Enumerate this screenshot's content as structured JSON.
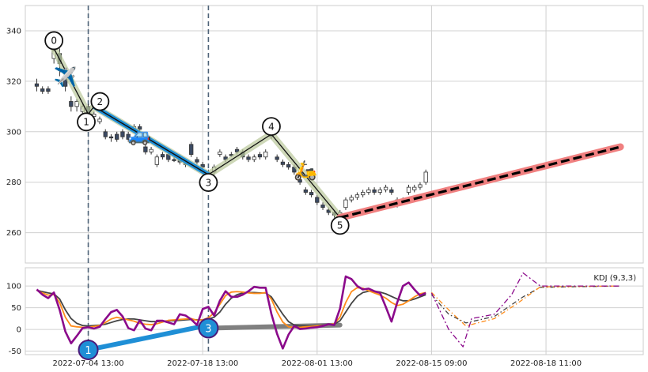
{
  "chart_data": [
    {
      "type": "candlestick",
      "ylim": [
        248,
        350
      ],
      "yticks": [
        260,
        280,
        300,
        320,
        340
      ],
      "candles": [
        [
          0,
          319,
          318,
          321,
          316,
          "down"
        ],
        [
          1,
          317,
          316,
          318,
          315,
          "down"
        ],
        [
          2,
          317,
          316,
          318,
          315,
          "down"
        ],
        [
          3,
          329,
          332,
          334,
          327,
          "up"
        ],
        [
          4,
          331,
          327,
          333,
          322,
          "down"
        ],
        [
          5,
          322,
          318,
          324,
          316,
          "down"
        ],
        [
          6,
          312,
          310,
          314,
          308,
          "down"
        ],
        [
          7,
          310,
          312,
          313,
          308,
          "up"
        ],
        [
          8,
          308,
          310,
          311,
          306,
          "up"
        ],
        [
          9,
          310,
          306,
          311,
          303,
          "down"
        ],
        [
          10,
          306,
          307,
          308,
          304,
          "up"
        ],
        [
          11,
          304,
          305,
          306,
          303,
          "up"
        ],
        [
          12,
          300,
          298,
          301,
          297,
          "down"
        ],
        [
          13,
          298,
          298,
          299,
          296,
          "down"
        ],
        [
          14,
          299,
          297,
          300,
          296,
          "down"
        ],
        [
          15,
          300,
          298,
          301,
          297,
          "down"
        ],
        [
          16,
          299,
          297,
          300,
          296,
          "down"
        ],
        [
          17,
          301,
          302,
          303,
          300,
          "up"
        ],
        [
          18,
          302,
          301,
          303,
          300,
          "down"
        ],
        [
          19,
          294,
          292,
          295,
          291,
          "down"
        ],
        [
          20,
          292,
          293,
          294,
          291,
          "up"
        ],
        [
          21,
          287,
          290,
          291,
          286,
          "up"
        ],
        [
          22,
          291,
          290,
          292,
          289,
          "down"
        ],
        [
          23,
          291,
          289,
          292,
          288,
          "down"
        ],
        [
          24,
          289,
          289,
          290,
          288,
          "down"
        ],
        [
          25,
          290,
          288,
          291,
          287,
          "down"
        ],
        [
          26,
          288,
          287,
          289,
          286,
          "down"
        ],
        [
          27,
          295,
          291,
          296,
          290,
          "down"
        ],
        [
          28,
          289,
          288,
          290,
          287,
          "down"
        ],
        [
          29,
          287,
          286,
          288,
          285,
          "down"
        ],
        [
          30,
          284,
          283,
          285,
          282,
          "down"
        ],
        [
          31,
          284,
          286,
          287,
          283,
          "up"
        ],
        [
          32,
          291,
          292,
          293,
          290,
          "up"
        ],
        [
          33,
          290,
          289,
          291,
          288,
          "down"
        ],
        [
          34,
          291,
          291,
          292,
          290,
          "down"
        ],
        [
          35,
          293,
          292,
          294,
          291,
          "down"
        ],
        [
          36,
          292,
          290,
          293,
          289,
          "down"
        ],
        [
          37,
          290,
          289,
          291,
          288,
          "down"
        ],
        [
          38,
          289,
          290,
          291,
          288,
          "up"
        ],
        [
          39,
          291,
          290,
          292,
          289,
          "down"
        ],
        [
          40,
          290,
          292,
          293,
          289,
          "up"
        ],
        [
          41,
          299,
          298,
          300,
          297,
          "down"
        ],
        [
          42,
          290,
          289,
          291,
          288,
          "down"
        ],
        [
          43,
          288,
          287,
          289,
          286,
          "down"
        ],
        [
          44,
          287,
          286,
          288,
          285,
          "down"
        ],
        [
          45,
          286,
          284,
          287,
          283,
          "down"
        ],
        [
          46,
          281,
          280,
          282,
          279,
          "down"
        ],
        [
          47,
          277,
          276,
          278,
          275,
          "down"
        ],
        [
          48,
          276,
          275,
          277,
          274,
          "down"
        ],
        [
          49,
          274,
          272,
          275,
          271,
          "down"
        ],
        [
          50,
          271,
          270,
          272,
          269,
          "down"
        ],
        [
          51,
          269,
          268,
          270,
          267,
          "down"
        ],
        [
          52,
          268,
          267,
          269,
          266,
          "down"
        ],
        [
          53,
          267,
          268,
          269,
          266,
          "up"
        ],
        [
          54,
          270,
          273,
          274,
          269,
          "up"
        ],
        [
          55,
          273,
          274,
          275,
          272,
          "up"
        ],
        [
          56,
          274,
          275,
          276,
          273,
          "up"
        ],
        [
          57,
          275,
          276,
          277,
          274,
          "up"
        ],
        [
          58,
          276,
          277,
          278,
          275,
          "up"
        ],
        [
          59,
          277,
          276,
          278,
          275,
          "down"
        ],
        [
          60,
          276,
          277,
          278,
          275,
          "up"
        ],
        [
          61,
          277,
          278,
          279,
          276,
          "up"
        ],
        [
          62,
          277,
          276,
          278,
          275,
          "down"
        ],
        [
          63,
          273,
          271,
          274,
          270,
          "down"
        ],
        [
          64,
          272,
          273,
          274,
          271,
          "up"
        ],
        [
          65,
          276,
          278,
          279,
          275,
          "up"
        ],
        [
          66,
          277,
          278,
          279,
          276,
          "up"
        ],
        [
          67,
          278,
          279,
          280,
          277,
          "up"
        ],
        [
          68,
          280,
          284,
          285,
          279,
          "up"
        ]
      ],
      "zigzag": [
        {
          "label": "0",
          "x": 3,
          "y": 333
        },
        {
          "label": "1",
          "x": 9,
          "y": 307
        },
        {
          "label": "2",
          "x": 10,
          "y": 310
        },
        {
          "label": "3",
          "x": 30,
          "y": 283
        },
        {
          "label": "4",
          "x": 41,
          "y": 299
        },
        {
          "label": "5",
          "x": 53,
          "y": 266
        }
      ],
      "projection": {
        "x0": 53,
        "y0": 266,
        "x1": 102,
        "y1": 294
      },
      "price_guides": [
        9,
        30
      ],
      "icons": [
        {
          "emoji": "✈️",
          "x": 5,
          "y": 322
        },
        {
          "emoji": "🚙",
          "x": 18,
          "y": 299
        },
        {
          "emoji": "🛵",
          "x": 47,
          "y": 285
        }
      ]
    },
    {
      "type": "line",
      "legend": "KDJ (9,3,3)",
      "ylim": [
        -58,
        142
      ],
      "yticks": [
        -50,
        0,
        50,
        100
      ],
      "xtick_labels": [
        {
          "x": 9,
          "label": "2022-07-04 13:00"
        },
        {
          "x": 29,
          "label": "2022-07-18 13:00"
        },
        {
          "x": 49,
          "label": "2022-08-01 13:00"
        },
        {
          "x": 69,
          "label": "2022-08-15 09:00"
        },
        {
          "x": 89,
          "label": "2022-08-18 11:00"
        }
      ],
      "kdj_guides": [
        9,
        30
      ],
      "series": [
        {
          "key": "D",
          "color": "#444444",
          "values": [
            90,
            87,
            84,
            82,
            70,
            45,
            25,
            14,
            9,
            8,
            9,
            10,
            12,
            16,
            20,
            23,
            24,
            24,
            22,
            20,
            18,
            18,
            19,
            20,
            20,
            21,
            22,
            23,
            22,
            22,
            24,
            28,
            40,
            58,
            72,
            80,
            84,
            85,
            85,
            84,
            84,
            75,
            55,
            35,
            18,
            10,
            8,
            8,
            8,
            9,
            10,
            11,
            12,
            20,
            40,
            60,
            76,
            85,
            88,
            88,
            86,
            82,
            76,
            70,
            66,
            66,
            70,
            75,
            80
          ]
        },
        {
          "key": "K",
          "color": "#ff8c1a",
          "values": [
            90,
            84,
            79,
            80,
            62,
            28,
            8,
            6,
            5,
            5,
            7,
            9,
            16,
            24,
            28,
            25,
            22,
            19,
            14,
            12,
            11,
            13,
            17,
            21,
            22,
            23,
            24,
            25,
            21,
            22,
            27,
            38,
            58,
            78,
            86,
            87,
            86,
            84,
            83,
            83,
            85,
            70,
            40,
            17,
            6,
            5,
            5,
            6,
            7,
            8,
            9,
            11,
            13,
            28,
            62,
            87,
            96,
            95,
            89,
            84,
            79,
            72,
            62,
            55,
            58,
            66,
            75,
            82,
            85
          ]
        },
        {
          "key": "J",
          "color": "#8b0a8b",
          "values": [
            92,
            80,
            72,
            85,
            45,
            -5,
            -32,
            -15,
            3,
            5,
            2,
            6,
            24,
            40,
            45,
            30,
            3,
            -2,
            21,
            2,
            -2,
            20,
            20,
            16,
            12,
            35,
            32,
            23,
            10,
            47,
            52,
            32,
            66,
            88,
            75,
            75,
            80,
            88,
            98,
            96,
            96,
            36,
            -10,
            -44,
            -12,
            8,
            1,
            2,
            4,
            5,
            8,
            12,
            10,
            48,
            122,
            116,
            100,
            92,
            94,
            88,
            84,
            52,
            18,
            62,
            100,
            108,
            92,
            78,
            84
          ]
        },
        {
          "key": "D-proj",
          "color": "#444444",
          "dash": "6 3 1.5 3",
          "values": [
            [
              69,
              80
            ],
            [
              72,
              35
            ],
            [
              75,
              15
            ],
            [
              80,
              30
            ],
            [
              85,
              75
            ],
            [
              88,
              97
            ],
            [
              102,
              100
            ]
          ]
        },
        {
          "key": "K-proj",
          "color": "#ff8c1a",
          "dash": "6 3 1.5 3",
          "values": [
            [
              69,
              85
            ],
            [
              72,
              45
            ],
            [
              75,
              8
            ],
            [
              80,
              25
            ],
            [
              84,
              60
            ],
            [
              88,
              98
            ],
            [
              102,
              100
            ]
          ]
        },
        {
          "key": "J-proj",
          "color": "#8b0a8b",
          "dash": "7 3 2 3",
          "values": [
            [
              69,
              84
            ],
            [
              72,
              0
            ],
            [
              74.5,
              -40
            ],
            [
              76,
              25
            ],
            [
              80,
              35
            ],
            [
              83,
              80
            ],
            [
              85,
              130
            ],
            [
              88,
              100
            ],
            [
              102,
              100
            ]
          ]
        }
      ],
      "arrows": [
        {
          "label": "1",
          "x0": 9,
          "y0": -47,
          "x1": 30,
          "y1": 10,
          "color": "#1f8fd6"
        },
        {
          "label": "3",
          "x0": 30,
          "y0": 3,
          "x1": 53,
          "y1": 10,
          "color": "#808080"
        }
      ]
    }
  ]
}
